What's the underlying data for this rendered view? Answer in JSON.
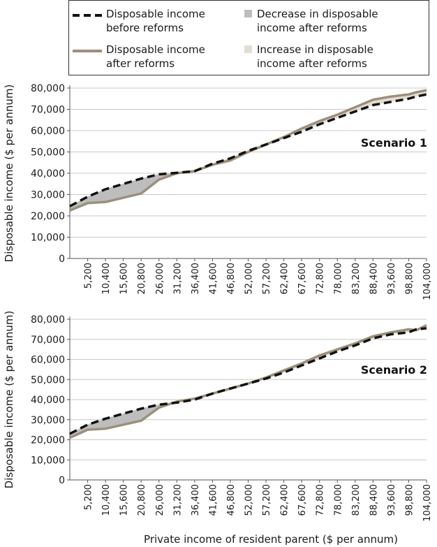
{
  "legend": {
    "items": [
      {
        "key": "before",
        "label_lines": [
          "Disposable income",
          "before reforms"
        ],
        "symbol": "dashed-line",
        "color": "#111111"
      },
      {
        "key": "after",
        "label_lines": [
          "Disposable income",
          "after reforms"
        ],
        "symbol": "solid-line",
        "color": "#9c8f7c"
      },
      {
        "key": "decrease",
        "label_lines": [
          "Decrease in disposable",
          "income after reforms"
        ],
        "symbol": "swatch",
        "color": "#bdbdbd"
      },
      {
        "key": "increase",
        "label_lines": [
          "Increase in disposable",
          "income after reforms"
        ],
        "symbol": "swatch",
        "color": "#e4ddd3"
      }
    ]
  },
  "x_axis_title": "Private income of resident parent ($ per annum)",
  "colors": {
    "before": "#111111",
    "after": "#9c8f7c",
    "decrease_fill": "#bdbdbd",
    "increase_fill": "#e4ddd3",
    "grid": "#c8c8c8",
    "axis": "#555555"
  },
  "chart_data": [
    {
      "type": "line",
      "title": "Scenario 1",
      "xlabel": "Private income of resident parent ($ per annum)",
      "ylabel": "Disposable income ($ per annum)",
      "xlim": [
        0,
        104000
      ],
      "ylim": [
        0,
        80000
      ],
      "grid": true,
      "x_ticks": [
        5200,
        10400,
        15600,
        20800,
        26000,
        31200,
        36400,
        41600,
        46800,
        52000,
        57200,
        62400,
        67600,
        72800,
        78000,
        83200,
        88400,
        93600,
        98800,
        104000
      ],
      "y_ticks": [
        0,
        10000,
        20000,
        30000,
        40000,
        50000,
        60000,
        70000,
        80000
      ],
      "x_tick_labels": [
        "5,200",
        "10,400",
        "15,600",
        "20,800",
        "26,000",
        "31,200",
        "36,400",
        "41,600",
        "46,800",
        "52,000",
        "57,200",
        "62,400",
        "67,600",
        "72,800",
        "78,000",
        "83,200",
        "88,400",
        "93,600",
        "98,800",
        "104,000"
      ],
      "y_tick_labels": [
        "0",
        "10,000",
        "20,000",
        "30,000",
        "40,000",
        "50,000",
        "60,000",
        "70,000",
        "80,000"
      ],
      "x": [
        0,
        5200,
        10400,
        15600,
        20800,
        26000,
        31200,
        36400,
        41600,
        46800,
        52000,
        57200,
        62400,
        67600,
        72800,
        78000,
        83200,
        88400,
        93600,
        98800,
        101000,
        104000
      ],
      "series": [
        {
          "name": "Disposable income before reforms",
          "values": [
            24500,
            29000,
            32500,
            35000,
            37500,
            39500,
            40200,
            41000,
            44500,
            47000,
            50500,
            53500,
            56500,
            59500,
            63000,
            66000,
            69000,
            72000,
            73500,
            75000,
            76000,
            77000
          ]
        },
        {
          "name": "Disposable income after reforms",
          "values": [
            22500,
            26000,
            26500,
            28500,
            30500,
            37000,
            40000,
            41000,
            44000,
            46000,
            50000,
            53500,
            57000,
            61000,
            64500,
            67500,
            71000,
            74500,
            76000,
            77000,
            78000,
            79000
          ]
        }
      ]
    },
    {
      "type": "line",
      "title": "Scenario 2",
      "xlabel": "Private income of resident parent ($ per annum)",
      "ylabel": "Disposable income ($ per annum)",
      "xlim": [
        0,
        104000
      ],
      "ylim": [
        0,
        80000
      ],
      "grid": true,
      "x_ticks": [
        5200,
        10400,
        15600,
        20800,
        26000,
        31200,
        36400,
        41600,
        46800,
        52000,
        57200,
        62400,
        67600,
        72800,
        78000,
        83200,
        88400,
        93600,
        98800,
        104000
      ],
      "y_ticks": [
        0,
        10000,
        20000,
        30000,
        40000,
        50000,
        60000,
        70000,
        80000
      ],
      "x_tick_labels": [
        "5,200",
        "10,400",
        "15,600",
        "20,800",
        "26,000",
        "31,200",
        "36,400",
        "41,600",
        "46,800",
        "52,000",
        "57,200",
        "62,400",
        "67,600",
        "72,800",
        "78,000",
        "83,200",
        "88,400",
        "93,600",
        "98,800",
        "104,000"
      ],
      "y_tick_labels": [
        "0",
        "10,000",
        "20,000",
        "30,000",
        "40,000",
        "50,000",
        "60,000",
        "70,000",
        "80,000"
      ],
      "x": [
        0,
        5200,
        10400,
        15600,
        20800,
        26000,
        31200,
        36400,
        41600,
        46800,
        52000,
        57200,
        62400,
        67600,
        72800,
        78000,
        83200,
        88400,
        93600,
        98800,
        101000,
        104000
      ],
      "series": [
        {
          "name": "Disposable income before reforms",
          "values": [
            23000,
            27500,
            30500,
            33000,
            35500,
            37500,
            38500,
            40000,
            43000,
            45500,
            48000,
            50500,
            53500,
            57000,
            60500,
            64000,
            67000,
            70500,
            72500,
            73500,
            75000,
            75500
          ]
        },
        {
          "name": "Disposable income after reforms",
          "values": [
            21000,
            25000,
            25500,
            27500,
            29500,
            36000,
            39000,
            40500,
            43000,
            45500,
            48000,
            51000,
            54500,
            58000,
            62000,
            65000,
            68000,
            71500,
            73500,
            75000,
            74500,
            77000
          ]
        }
      ]
    }
  ]
}
